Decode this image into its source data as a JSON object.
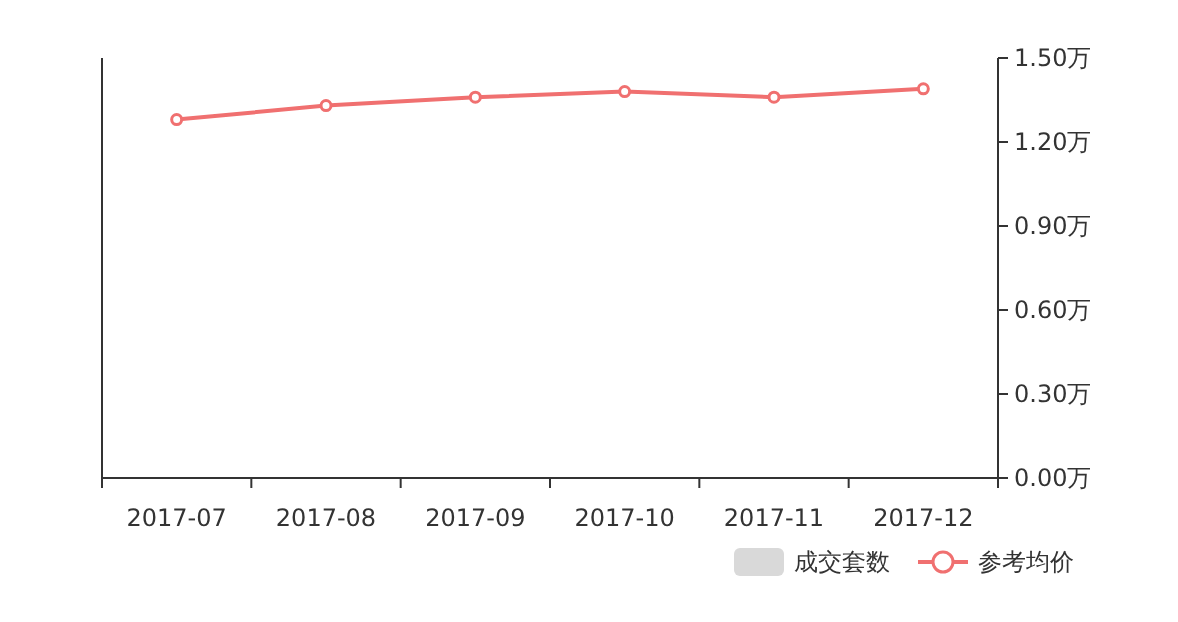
{
  "chart_data": {
    "type": "line",
    "categories": [
      "2017-07",
      "2017-08",
      "2017-09",
      "2017-10",
      "2017-11",
      "2017-12"
    ],
    "series": [
      {
        "name": "成交套数",
        "type": "bar",
        "color": "#d9d9d9",
        "values": [
          null,
          null,
          null,
          null,
          null,
          null
        ]
      },
      {
        "name": "参考均价",
        "axis": "y2",
        "color": "#f07070",
        "values": [
          1.28,
          1.33,
          1.36,
          1.38,
          1.36,
          1.39
        ]
      }
    ],
    "y2lim": [
      0,
      1.5
    ],
    "y2ticks": [
      {
        "value": 0,
        "label": "0.00万"
      },
      {
        "value": 0.3,
        "label": "0.30万"
      },
      {
        "value": 0.6,
        "label": "0.60万"
      },
      {
        "value": 0.9,
        "label": "0.90万"
      },
      {
        "value": 1.2,
        "label": "1.20万"
      },
      {
        "value": 1.5,
        "label": "1.50万"
      }
    ],
    "marker": "circle",
    "legend": "bottom right",
    "grid": false
  }
}
